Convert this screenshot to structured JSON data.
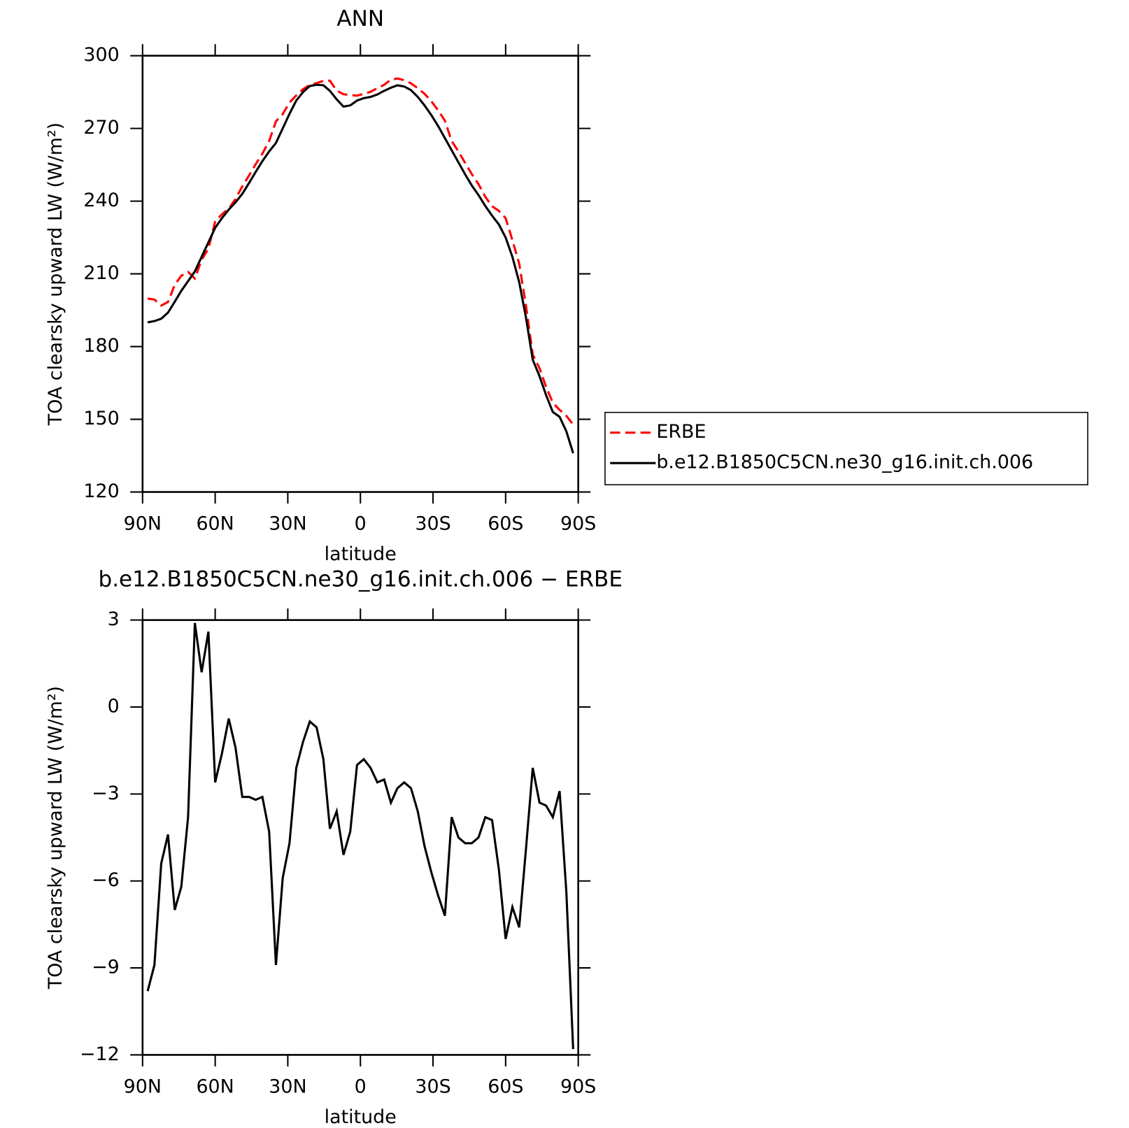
{
  "chart_data": [
    {
      "type": "line",
      "title": "ANN",
      "y_label": "TOA clearsky upward LW (W/m²)",
      "x_label": "latitude",
      "x": [
        87.9,
        85.1,
        82.3,
        79.5,
        76.7,
        74.0,
        71.2,
        68.4,
        65.6,
        62.8,
        60.0,
        57.2,
        54.4,
        51.6,
        48.8,
        46.0,
        43.3,
        40.5,
        37.7,
        34.9,
        32.1,
        29.3,
        26.5,
        23.7,
        20.9,
        18.1,
        15.3,
        12.6,
        9.8,
        7.0,
        4.2,
        1.4,
        -1.4,
        -4.2,
        -7.0,
        -9.8,
        -12.6,
        -15.3,
        -18.1,
        -20.9,
        -23.7,
        -26.5,
        -29.3,
        -32.1,
        -34.9,
        -37.7,
        -40.5,
        -43.3,
        -46.0,
        -48.8,
        -51.6,
        -54.4,
        -57.2,
        -60.0,
        -62.8,
        -65.6,
        -68.4,
        -71.2,
        -74.0,
        -76.7,
        -79.5,
        -82.3,
        -85.1,
        -87.9
      ],
      "series": [
        {
          "name": "ERBE",
          "color": "#ff0000",
          "line_style": "dashed",
          "values": [
            199.8,
            199.4,
            196.9,
            198.4,
            205.5,
            209.2,
            210.8,
            208.1,
            215.8,
            220.4,
            231.6,
            234.6,
            236.9,
            240.9,
            246.1,
            250.6,
            255.2,
            259.6,
            264.8,
            272.9,
            275.9,
            280.7,
            283.6,
            286.2,
            288.0,
            288.7,
            289.6,
            289.7,
            285.6,
            284.1,
            283.8,
            283.5,
            284.3,
            285.1,
            286.6,
            288.0,
            290.1,
            290.6,
            289.9,
            288.6,
            286.6,
            284.3,
            281.2,
            277.5,
            273.2,
            264.8,
            260.5,
            255.7,
            251.2,
            247.0,
            241.8,
            237.9,
            236.0,
            233.0,
            223.9,
            214.2,
            196.9,
            176.7,
            171.1,
            163.4,
            156.8,
            153.9,
            151.4,
            147.8
          ]
        },
        {
          "name": "b.e12.B1850C5CN.ne30_g16.init.ch.006",
          "color": "#000000",
          "line_style": "solid",
          "values": [
            190,
            190.5,
            191.5,
            194,
            198.5,
            203,
            207,
            211,
            217,
            223,
            229,
            233,
            236.5,
            239.5,
            243,
            247.5,
            252,
            256.5,
            260.5,
            264,
            270,
            276,
            281.5,
            285,
            287.5,
            288,
            287.8,
            285.5,
            282,
            279,
            279.5,
            281.5,
            282.5,
            283,
            284,
            285.5,
            286.8,
            287.8,
            287.3,
            285.8,
            283,
            279.5,
            275.5,
            271,
            266,
            261,
            256,
            251,
            246.5,
            242.5,
            238,
            234,
            230.4,
            225,
            217,
            206.6,
            192,
            174.6,
            167.8,
            160,
            153,
            151,
            145,
            136
          ]
        }
      ],
      "xlim": [
        90,
        -90
      ],
      "xticks": [
        {
          "value": 90,
          "label": "90N"
        },
        {
          "value": 60,
          "label": "60N"
        },
        {
          "value": 30,
          "label": "30N"
        },
        0,
        {
          "value": -30,
          "label": "30S"
        },
        {
          "value": -60,
          "label": "60S"
        },
        {
          "value": -90,
          "label": "90S"
        }
      ],
      "ylim": [
        120,
        300
      ],
      "yticks": [
        120,
        150,
        180,
        210,
        240,
        270,
        300
      ],
      "legend": "outside-right"
    },
    {
      "type": "line",
      "title": "b.e12.B1850C5CN.ne30_g16.init.ch.006 − ERBE",
      "y_label": "TOA clearsky upward LW (W/m²)",
      "x_label": "latitude",
      "x": [
        87.9,
        85.1,
        82.3,
        79.5,
        76.7,
        74.0,
        71.2,
        68.4,
        65.6,
        62.8,
        60.0,
        57.2,
        54.4,
        51.6,
        48.8,
        46.0,
        43.3,
        40.5,
        37.7,
        34.9,
        32.1,
        29.3,
        26.5,
        23.7,
        20.9,
        18.1,
        15.3,
        12.6,
        9.8,
        7.0,
        4.2,
        1.4,
        -1.4,
        -4.2,
        -7.0,
        -9.8,
        -12.6,
        -15.3,
        -18.1,
        -20.9,
        -23.7,
        -26.5,
        -29.3,
        -32.1,
        -34.9,
        -37.7,
        -40.5,
        -43.3,
        -46.0,
        -48.8,
        -51.6,
        -54.4,
        -57.2,
        -60.0,
        -62.8,
        -65.6,
        -68.4,
        -71.2,
        -74.0,
        -76.7,
        -79.5,
        -82.3,
        -85.1,
        -87.9
      ],
      "values": [
        -9.8,
        -8.9,
        -5.4,
        -4.4,
        -7.0,
        -6.2,
        -3.8,
        2.9,
        1.2,
        2.6,
        -2.6,
        -1.6,
        -0.4,
        -1.4,
        -3.1,
        -3.1,
        -3.2,
        -3.1,
        -4.3,
        -8.9,
        -5.9,
        -4.7,
        -2.1,
        -1.2,
        -0.5,
        -0.7,
        -1.8,
        -4.2,
        -3.6,
        -5.1,
        -4.3,
        -2.0,
        -1.8,
        -2.1,
        -2.6,
        -2.5,
        -3.3,
        -2.8,
        -2.6,
        -2.8,
        -3.6,
        -4.8,
        -5.7,
        -6.5,
        -7.2,
        -3.8,
        -4.5,
        -4.7,
        -4.7,
        -4.5,
        -3.8,
        -3.9,
        -5.6,
        -8.0,
        -6.9,
        -7.6,
        -4.9,
        -2.1,
        -3.3,
        -3.4,
        -3.8,
        -2.9,
        -6.4,
        -11.8
      ],
      "color": "#000000",
      "xlim": [
        90,
        -90
      ],
      "xticks": [
        {
          "value": 90,
          "label": "90N"
        },
        {
          "value": 60,
          "label": "60N"
        },
        {
          "value": 30,
          "label": "30N"
        },
        0,
        {
          "value": -30,
          "label": "30S"
        },
        {
          "value": -60,
          "label": "60S"
        },
        {
          "value": -90,
          "label": "90S"
        }
      ],
      "ylim": [
        -12,
        3
      ],
      "yticks": [
        {
          "value": -12,
          "label": "−12"
        },
        {
          "value": -9,
          "label": "−9"
        },
        {
          "value": -6,
          "label": "−6"
        },
        {
          "value": -3,
          "label": "−3"
        },
        0,
        3
      ]
    }
  ]
}
